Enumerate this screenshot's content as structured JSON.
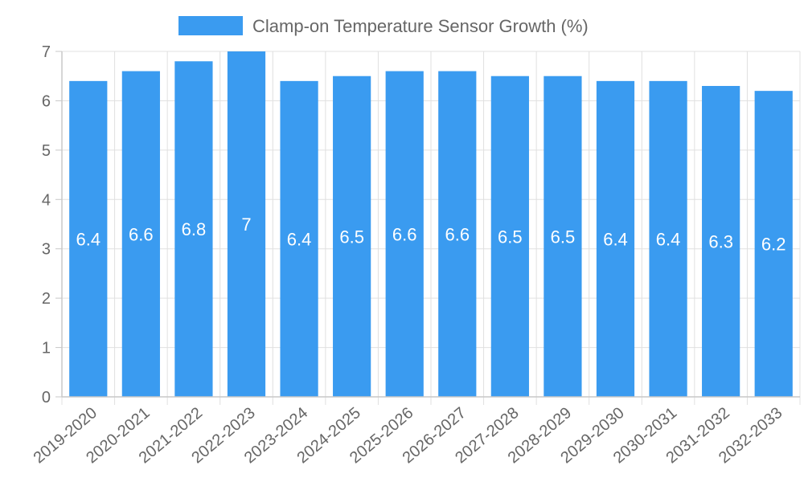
{
  "chart_data": {
    "type": "bar",
    "title": "",
    "xlabel": "",
    "ylabel": "",
    "categories": [
      "2019-2020",
      "2020-2021",
      "2021-2022",
      "2022-2023",
      "2023-2024",
      "2024-2025",
      "2025-2026",
      "2026-2027",
      "2027-2028",
      "2028-2029",
      "2029-2030",
      "2030-2031",
      "2031-2032",
      "2032-2033"
    ],
    "series": [
      {
        "name": "Clamp-on Temperature Sensor Growth (%)",
        "values": [
          6.4,
          6.6,
          6.8,
          7,
          6.4,
          6.5,
          6.6,
          6.6,
          6.5,
          6.5,
          6.4,
          6.4,
          6.3,
          6.2
        ],
        "color": "#3a9bf0"
      }
    ],
    "ylim": [
      0,
      7
    ],
    "yticks": [
      0,
      1,
      2,
      3,
      4,
      5,
      6,
      7
    ],
    "grid": true,
    "legend_position": "top-center",
    "data_labels": true
  }
}
